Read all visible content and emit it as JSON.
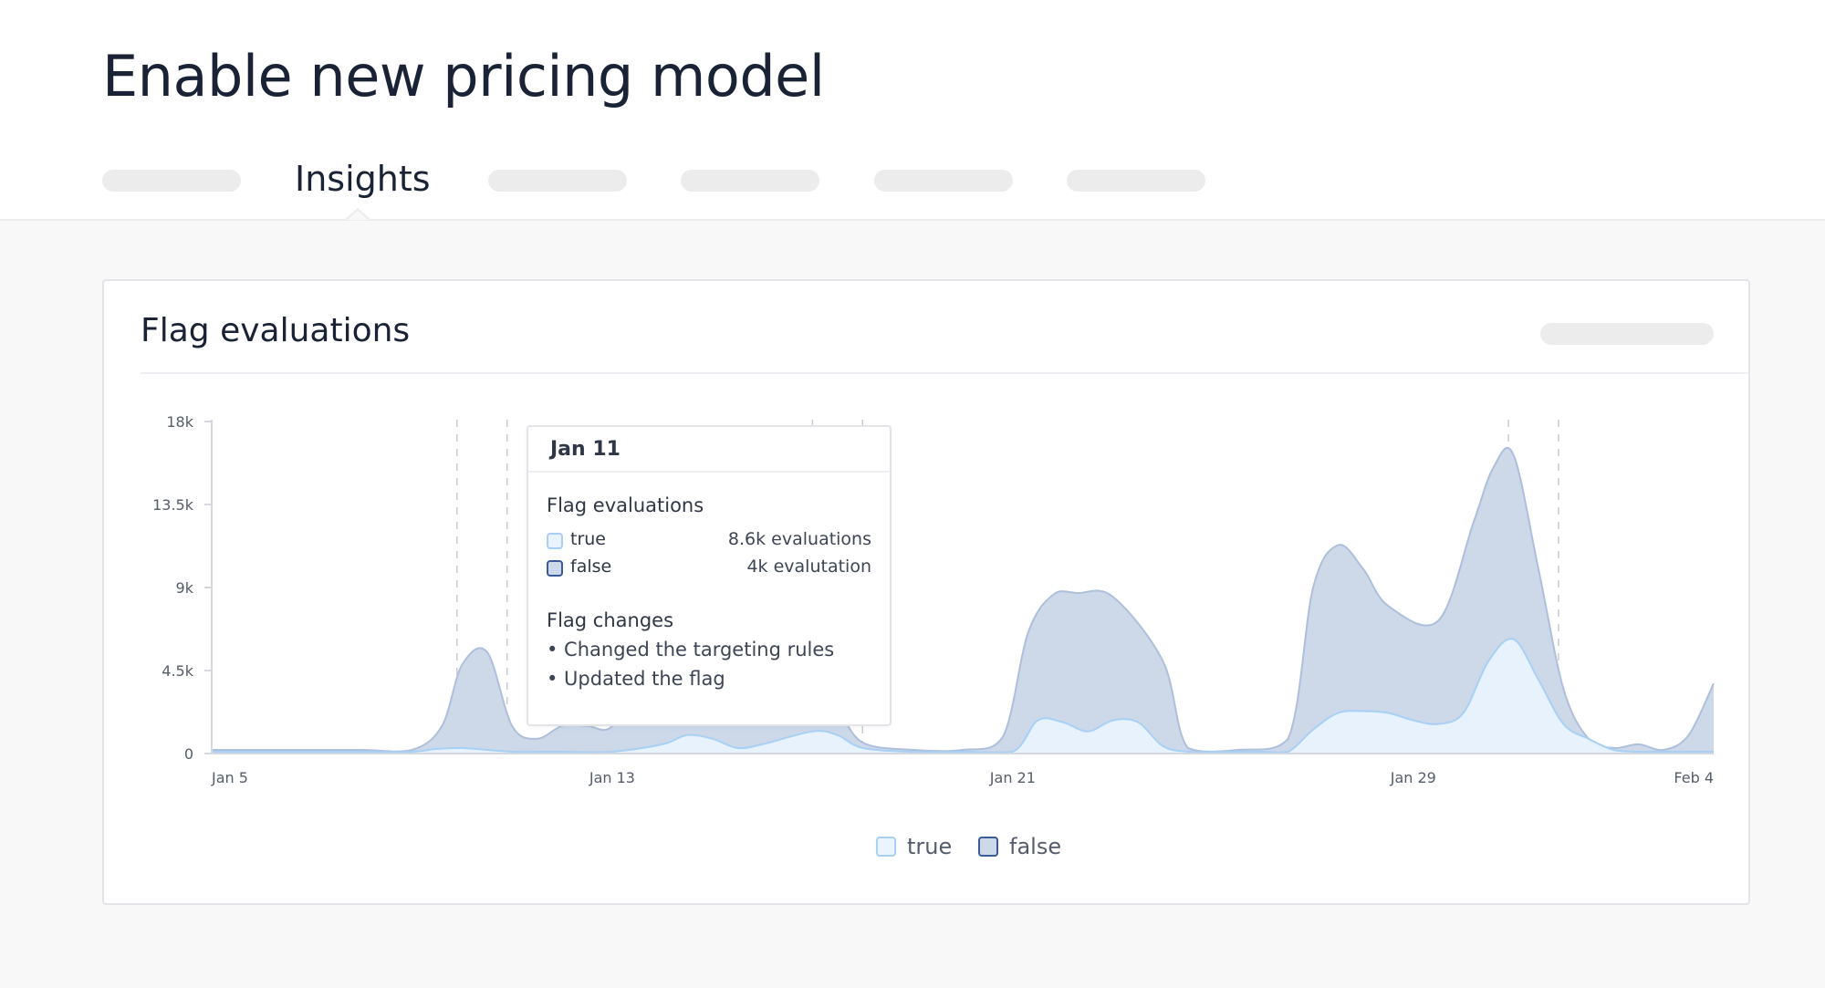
{
  "page": {
    "title": "Enable new pricing model"
  },
  "tabs": {
    "active_label": "Insights"
  },
  "card": {
    "title": "Flag evaluations"
  },
  "tooltip": {
    "date": "Jan 11",
    "section1_title": "Flag evaluations",
    "rows": [
      {
        "label": "true",
        "value": "8.6k evaluations"
      },
      {
        "label": "false",
        "value": "4k evalutation"
      }
    ],
    "section2_title": "Flag changes",
    "changes": [
      "• Changed the targeting rules",
      "• Updated the flag"
    ]
  },
  "legend": [
    {
      "label": "true"
    },
    {
      "label": "false"
    }
  ],
  "colors": {
    "true_fill": "#e8f3fd",
    "true_stroke": "#a8d0f5",
    "false_fill": "#cdd8e9",
    "false_stroke": "#aebfdc",
    "false_legend_stroke": "#3a5a99"
  },
  "chart_data": {
    "type": "area",
    "x_domain": [
      "Jan 5",
      "Feb 4"
    ],
    "x_ticks": [
      {
        "label": "Jan 5",
        "day": 0
      },
      {
        "label": "Jan 13",
        "day": 8
      },
      {
        "label": "Jan 21",
        "day": 16
      },
      {
        "label": "Jan 29",
        "day": 24
      },
      {
        "label": "Feb 4",
        "day": 30
      }
    ],
    "ylim": [
      0,
      18000
    ],
    "y_ticks": [
      {
        "label": "0",
        "value": 0
      },
      {
        "label": "4.5k",
        "value": 4500
      },
      {
        "label": "9k",
        "value": 9000
      },
      {
        "label": "13.5k",
        "value": 13500
      },
      {
        "label": "18k",
        "value": 18000
      }
    ],
    "event_markers_day": [
      4.9,
      5.9,
      12.0,
      13.0,
      25.9,
      26.9
    ],
    "series": [
      {
        "name": "false",
        "x": [
          0,
          1,
          2,
          3,
          4,
          4.6,
          5.0,
          5.5,
          6.0,
          6.5,
          7.0,
          7.5,
          8.0,
          8.5,
          9.0,
          10.0,
          11.0,
          12.0,
          12.5,
          13.0,
          14.0,
          15.0,
          15.8,
          16.3,
          16.8,
          17.3,
          18.0,
          19.0,
          19.5,
          20.5,
          21.5,
          22.0,
          22.5,
          23.0,
          23.5,
          24.5,
          25.2,
          25.6,
          26.0,
          26.5,
          27.0,
          27.5,
          28.0,
          28.5,
          29.0,
          29.5,
          30.0
        ],
        "y": [
          200,
          200,
          200,
          200,
          200,
          1500,
          4800,
          5500,
          1500,
          800,
          1500,
          1500,
          1500,
          4500,
          4500,
          4200,
          3900,
          3400,
          2400,
          600,
          200,
          200,
          900,
          6500,
          8600,
          8700,
          8500,
          5000,
          300,
          200,
          800,
          9000,
          11300,
          10000,
          8000,
          7200,
          12500,
          15500,
          16200,
          10000,
          3500,
          800,
          300,
          500,
          200,
          1000,
          3800
        ]
      },
      {
        "name": "true",
        "x": [
          0,
          1,
          2,
          3,
          4,
          4.5,
          5.0,
          5.5,
          6.0,
          6.5,
          7.0,
          8.0,
          9.0,
          9.5,
          10.0,
          10.5,
          11.0,
          12.0,
          12.5,
          13.0,
          14.0,
          15.0,
          16.0,
          16.5,
          17.0,
          17.5,
          18.0,
          18.5,
          19.0,
          19.5,
          20.0,
          20.5,
          21.0,
          21.5,
          22.0,
          22.5,
          23.0,
          23.5,
          24.0,
          24.5,
          25.0,
          25.5,
          26.0,
          26.5,
          27.0,
          27.5,
          28.0,
          28.5,
          29.0,
          29.5,
          30.0
        ],
        "y": [
          100,
          100,
          100,
          100,
          100,
          250,
          300,
          200,
          100,
          100,
          100,
          100,
          500,
          1000,
          800,
          300,
          500,
          1200,
          1000,
          300,
          100,
          100,
          100,
          1800,
          1700,
          1200,
          1800,
          1700,
          400,
          100,
          100,
          100,
          100,
          100,
          1300,
          2200,
          2300,
          2200,
          1800,
          1600,
          2200,
          5000,
          6200,
          4000,
          1600,
          800,
          200,
          100,
          100,
          100,
          100
        ]
      }
    ]
  }
}
